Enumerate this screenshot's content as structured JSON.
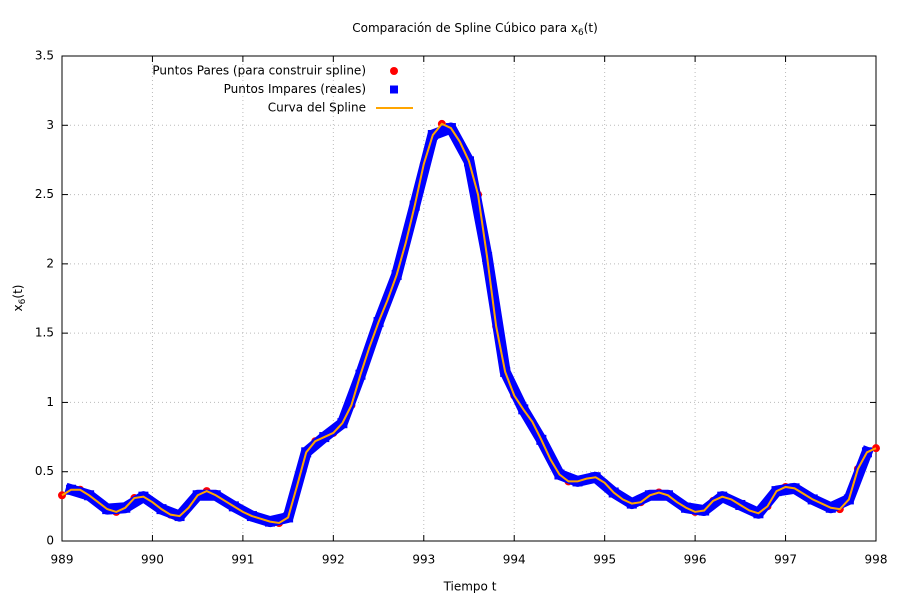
{
  "chart_data": {
    "type": "line",
    "title": {
      "text": "Comparación de Spline Cúbico para x",
      "subscript": "6",
      "suffix": "(t)"
    },
    "xlabel": "Tiempo t",
    "ylabel": {
      "text": "x",
      "subscript": "6",
      "suffix": "(t)"
    },
    "xlim": [
      989,
      998
    ],
    "xticks": [
      989,
      990,
      991,
      992,
      993,
      994,
      995,
      996,
      997,
      998
    ],
    "ylim": [
      0,
      3.5
    ],
    "yticks": [
      0,
      0.5,
      1,
      1.5,
      2,
      2.5,
      3,
      3.5
    ],
    "grid": true,
    "legend": "top-left",
    "x": [
      989.0,
      989.1,
      989.2,
      989.3,
      989.4,
      989.5,
      989.6,
      989.7,
      989.8,
      989.9,
      990.0,
      990.1,
      990.2,
      990.3,
      990.4,
      990.5,
      990.6,
      990.7,
      990.8,
      990.9,
      991.0,
      991.1,
      991.2,
      991.3,
      991.4,
      991.5,
      991.6,
      991.7,
      991.8,
      991.9,
      992.0,
      992.1,
      992.2,
      992.3,
      992.4,
      992.5,
      992.6,
      992.7,
      992.8,
      992.9,
      993.0,
      993.1,
      993.2,
      993.3,
      993.4,
      993.5,
      993.6,
      993.7,
      993.8,
      993.9,
      994.0,
      994.1,
      994.2,
      994.3,
      994.4,
      994.5,
      994.6,
      994.7,
      994.8,
      994.9,
      995.0,
      995.1,
      995.2,
      995.3,
      995.4,
      995.5,
      995.6,
      995.7,
      995.8,
      995.9,
      996.0,
      996.1,
      996.2,
      996.3,
      996.4,
      996.5,
      996.6,
      996.7,
      996.8,
      996.9,
      997.0,
      997.1,
      997.2,
      997.3,
      997.4,
      997.5,
      997.6,
      997.7,
      997.8,
      997.9,
      998.0
    ],
    "series": [
      {
        "name": "Puntos Pares (para construir spline)",
        "color": "#ff0000",
        "marker": "circle",
        "x": [
          989.0,
          989.2,
          989.4,
          989.6,
          989.8,
          990.0,
          990.2,
          990.4,
          990.6,
          990.8,
          991.0,
          991.2,
          991.4,
          991.6,
          991.8,
          992.0,
          992.2,
          992.4,
          992.6,
          992.8,
          993.0,
          993.2,
          993.4,
          993.6,
          993.8,
          994.0,
          994.2,
          994.4,
          994.6,
          994.8,
          995.0,
          995.2,
          995.4,
          995.6,
          995.8,
          996.0,
          996.2,
          996.4,
          996.6,
          996.8,
          997.0,
          997.2,
          997.4,
          997.6,
          997.8,
          998.0
        ],
        "values": [
          0.33,
          0.37,
          0.28,
          0.21,
          0.31,
          0.28,
          0.19,
          0.24,
          0.36,
          0.29,
          0.21,
          0.16,
          0.13,
          0.4,
          0.72,
          0.78,
          0.98,
          1.4,
          1.74,
          2.15,
          2.72,
          3.01,
          2.88,
          2.5,
          1.55,
          1.05,
          0.86,
          0.59,
          0.43,
          0.45,
          0.42,
          0.3,
          0.28,
          0.35,
          0.28,
          0.21,
          0.29,
          0.3,
          0.22,
          0.25,
          0.39,
          0.34,
          0.27,
          0.23,
          0.52,
          0.67
        ]
      },
      {
        "name": "Puntos Impares (reales)",
        "color": "#0000ff",
        "marker": "square",
        "x": [
          989.1,
          989.3,
          989.5,
          989.7,
          989.9,
          990.1,
          990.3,
          990.5,
          990.7,
          990.9,
          991.1,
          991.3,
          991.5,
          991.7,
          991.9,
          992.1,
          992.3,
          992.5,
          992.7,
          992.9,
          993.1,
          993.3,
          993.5,
          993.7,
          993.9,
          994.1,
          994.3,
          994.5,
          994.7,
          994.9,
          995.1,
          995.3,
          995.5,
          995.7,
          995.9,
          996.1,
          996.3,
          996.5,
          996.7,
          996.9,
          997.1,
          997.3,
          997.5,
          997.7,
          997.9
        ],
        "values": [
          0.37,
          0.33,
          0.23,
          0.24,
          0.32,
          0.23,
          0.18,
          0.33,
          0.33,
          0.25,
          0.18,
          0.14,
          0.17,
          0.64,
          0.75,
          0.85,
          1.2,
          1.58,
          1.92,
          2.42,
          2.93,
          2.98,
          2.74,
          2.05,
          1.22,
          0.95,
          0.73,
          0.48,
          0.43,
          0.46,
          0.35,
          0.27,
          0.33,
          0.33,
          0.24,
          0.22,
          0.32,
          0.26,
          0.2,
          0.36,
          0.38,
          0.3,
          0.24,
          0.3,
          0.64
        ]
      },
      {
        "name": "Curva del Spline",
        "color": "#ffa500",
        "marker": "line",
        "values": [
          0.33,
          0.37,
          0.37,
          0.33,
          0.28,
          0.23,
          0.21,
          0.24,
          0.31,
          0.32,
          0.28,
          0.23,
          0.19,
          0.18,
          0.24,
          0.33,
          0.36,
          0.33,
          0.29,
          0.25,
          0.21,
          0.18,
          0.16,
          0.14,
          0.13,
          0.17,
          0.4,
          0.64,
          0.72,
          0.75,
          0.78,
          0.85,
          0.98,
          1.2,
          1.4,
          1.58,
          1.74,
          1.92,
          2.15,
          2.42,
          2.72,
          2.93,
          3.01,
          2.98,
          2.88,
          2.74,
          2.5,
          2.05,
          1.55,
          1.22,
          1.05,
          0.95,
          0.86,
          0.73,
          0.59,
          0.48,
          0.43,
          0.43,
          0.45,
          0.46,
          0.42,
          0.35,
          0.3,
          0.27,
          0.28,
          0.33,
          0.35,
          0.33,
          0.28,
          0.24,
          0.21,
          0.22,
          0.29,
          0.32,
          0.3,
          0.26,
          0.22,
          0.2,
          0.25,
          0.36,
          0.39,
          0.38,
          0.34,
          0.3,
          0.27,
          0.24,
          0.23,
          0.3,
          0.52,
          0.64,
          0.67
        ]
      }
    ]
  }
}
